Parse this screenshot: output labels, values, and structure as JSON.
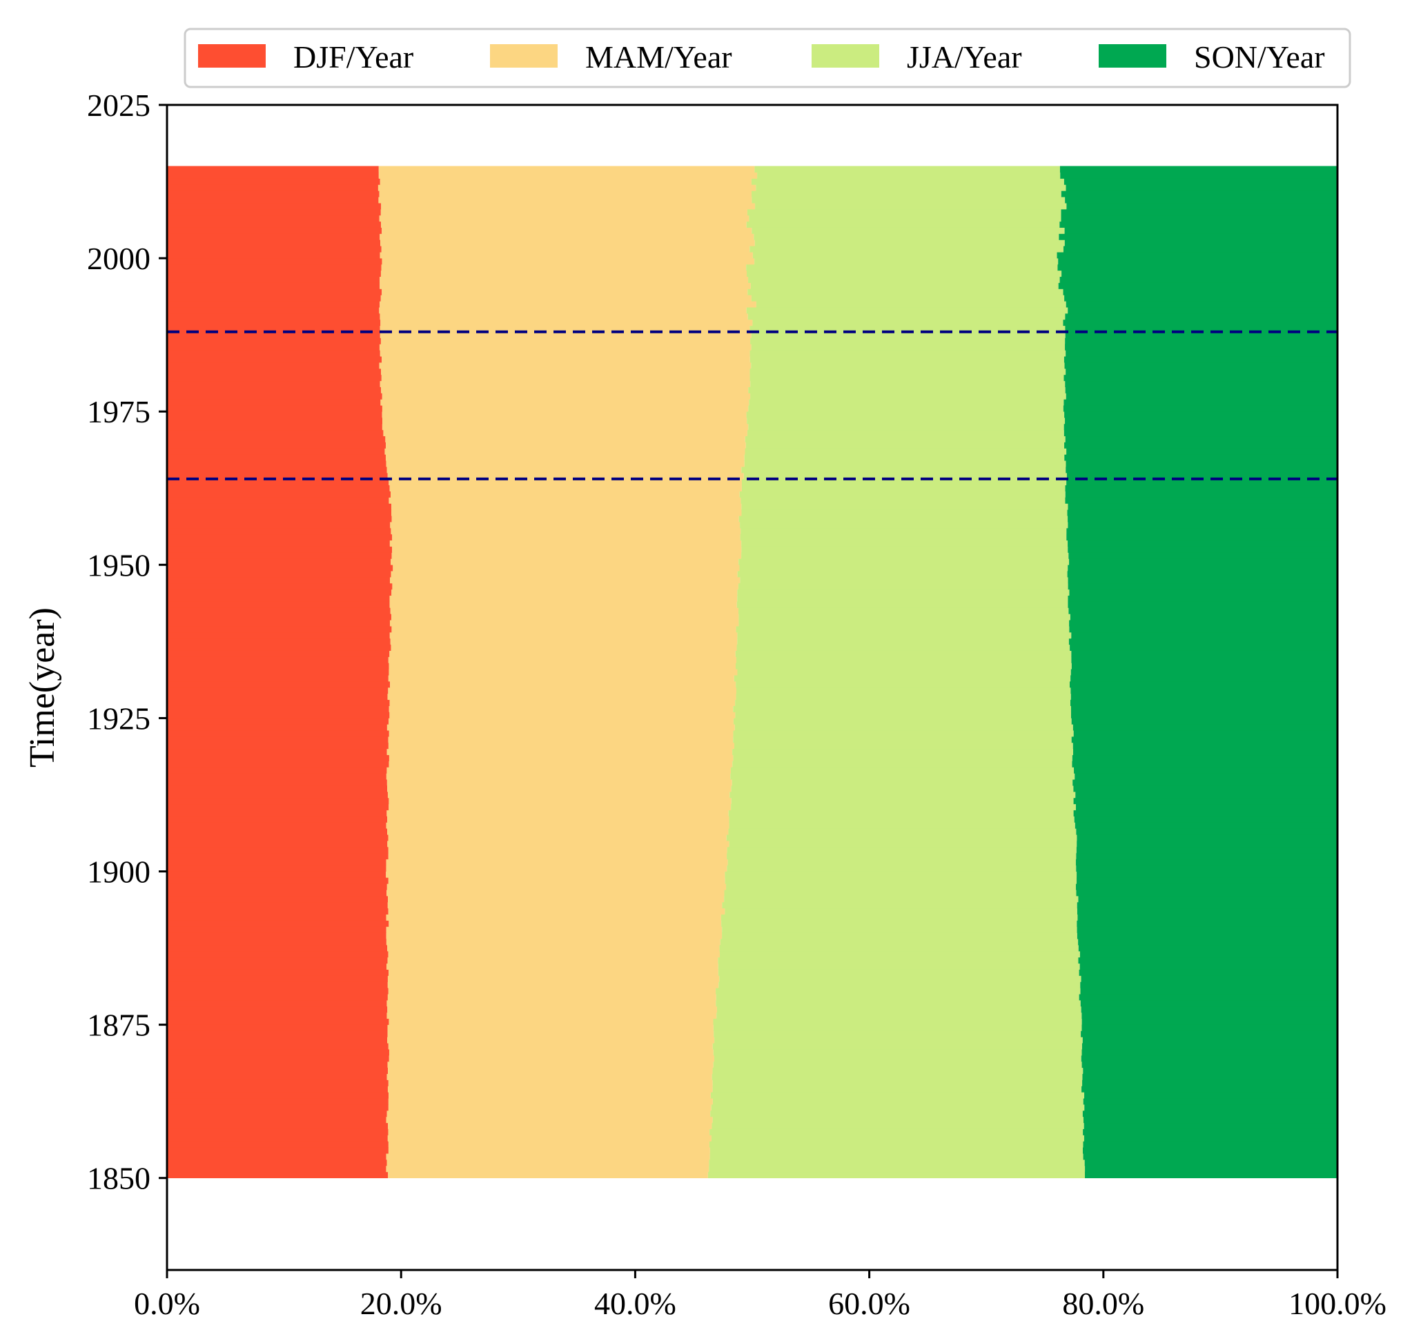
{
  "chart_data": {
    "type": "stacked-horizontal-bar",
    "title": "",
    "xlabel": "",
    "ylabel": "Time(year)",
    "xlim": [
      0,
      100
    ],
    "ylim": [
      1835,
      2025
    ],
    "year_range": [
      1850,
      2014
    ],
    "x_ticks": [
      "0.0%",
      "20.0%",
      "40.0%",
      "60.0%",
      "80.0%",
      "100.0%"
    ],
    "x_tick_values": [
      0,
      20,
      40,
      60,
      80,
      100
    ],
    "y_ticks": [
      "1850",
      "1875",
      "1900",
      "1925",
      "1950",
      "1975",
      "2000",
      "2025"
    ],
    "y_tick_values": [
      1850,
      1875,
      1900,
      1925,
      1950,
      1975,
      2000,
      2025
    ],
    "legend_position": "top",
    "series": [
      {
        "name": "DJF/Year",
        "color": "#fe4e31"
      },
      {
        "name": "MAM/Year",
        "color": "#fcd682"
      },
      {
        "name": "JJA/Year",
        "color": "#cbec80"
      },
      {
        "name": "SON/Year",
        "color": "#00a851"
      }
    ],
    "boundary_keyframes": {
      "years": [
        1850,
        1875,
        1900,
        1925,
        1950,
        1963,
        1975,
        1988,
        2000,
        2014
      ],
      "djf_mam": [
        18.8,
        18.9,
        18.8,
        18.9,
        19.2,
        19.0,
        18.3,
        18.2,
        18.3,
        18.1
      ],
      "mam_jja": [
        46.3,
        46.8,
        47.8,
        48.5,
        48.9,
        49.1,
        49.7,
        49.9,
        49.9,
        50.1
      ],
      "jja_son": [
        78.4,
        78.1,
        77.7,
        77.3,
        77.0,
        76.8,
        76.7,
        76.7,
        76.4,
        76.6
      ]
    },
    "annotations": [
      {
        "type": "hline",
        "y": 1964,
        "style": "dashed",
        "color": "#000080"
      },
      {
        "type": "hline",
        "y": 1988,
        "style": "dashed",
        "color": "#000080"
      }
    ]
  }
}
